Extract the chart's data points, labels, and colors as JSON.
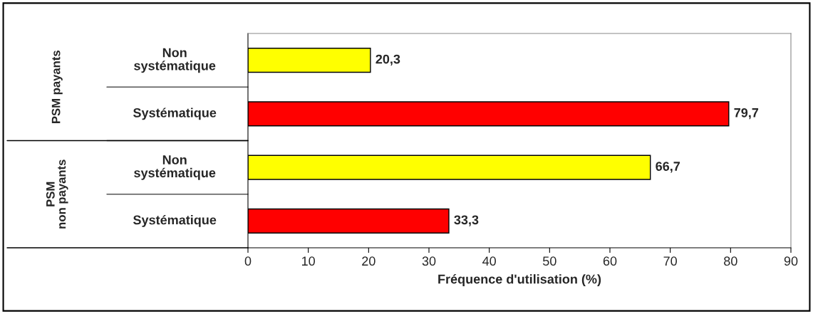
{
  "chart_data": {
    "type": "bar",
    "orientation": "horizontal",
    "xlabel": "Fréquence d'utilisation (%)",
    "categories": [
      "Non systématique",
      "Systématique",
      "Non systématique",
      "Systématique"
    ],
    "values": [
      20.3,
      79.7,
      66.7,
      33.3
    ],
    "colors": [
      "#ffff00",
      "#ff0000",
      "#ffff00",
      "#ff0000"
    ],
    "value_labels": [
      "20,3",
      "79,7",
      "66,7",
      "33,3"
    ],
    "xlim": [
      0,
      90
    ],
    "xticks": [
      0,
      10,
      20,
      30,
      40,
      50,
      60,
      70,
      80,
      90
    ],
    "annotations": [
      "PSM payants",
      "PSM non payants"
    ],
    "grid": false,
    "legend": false
  }
}
